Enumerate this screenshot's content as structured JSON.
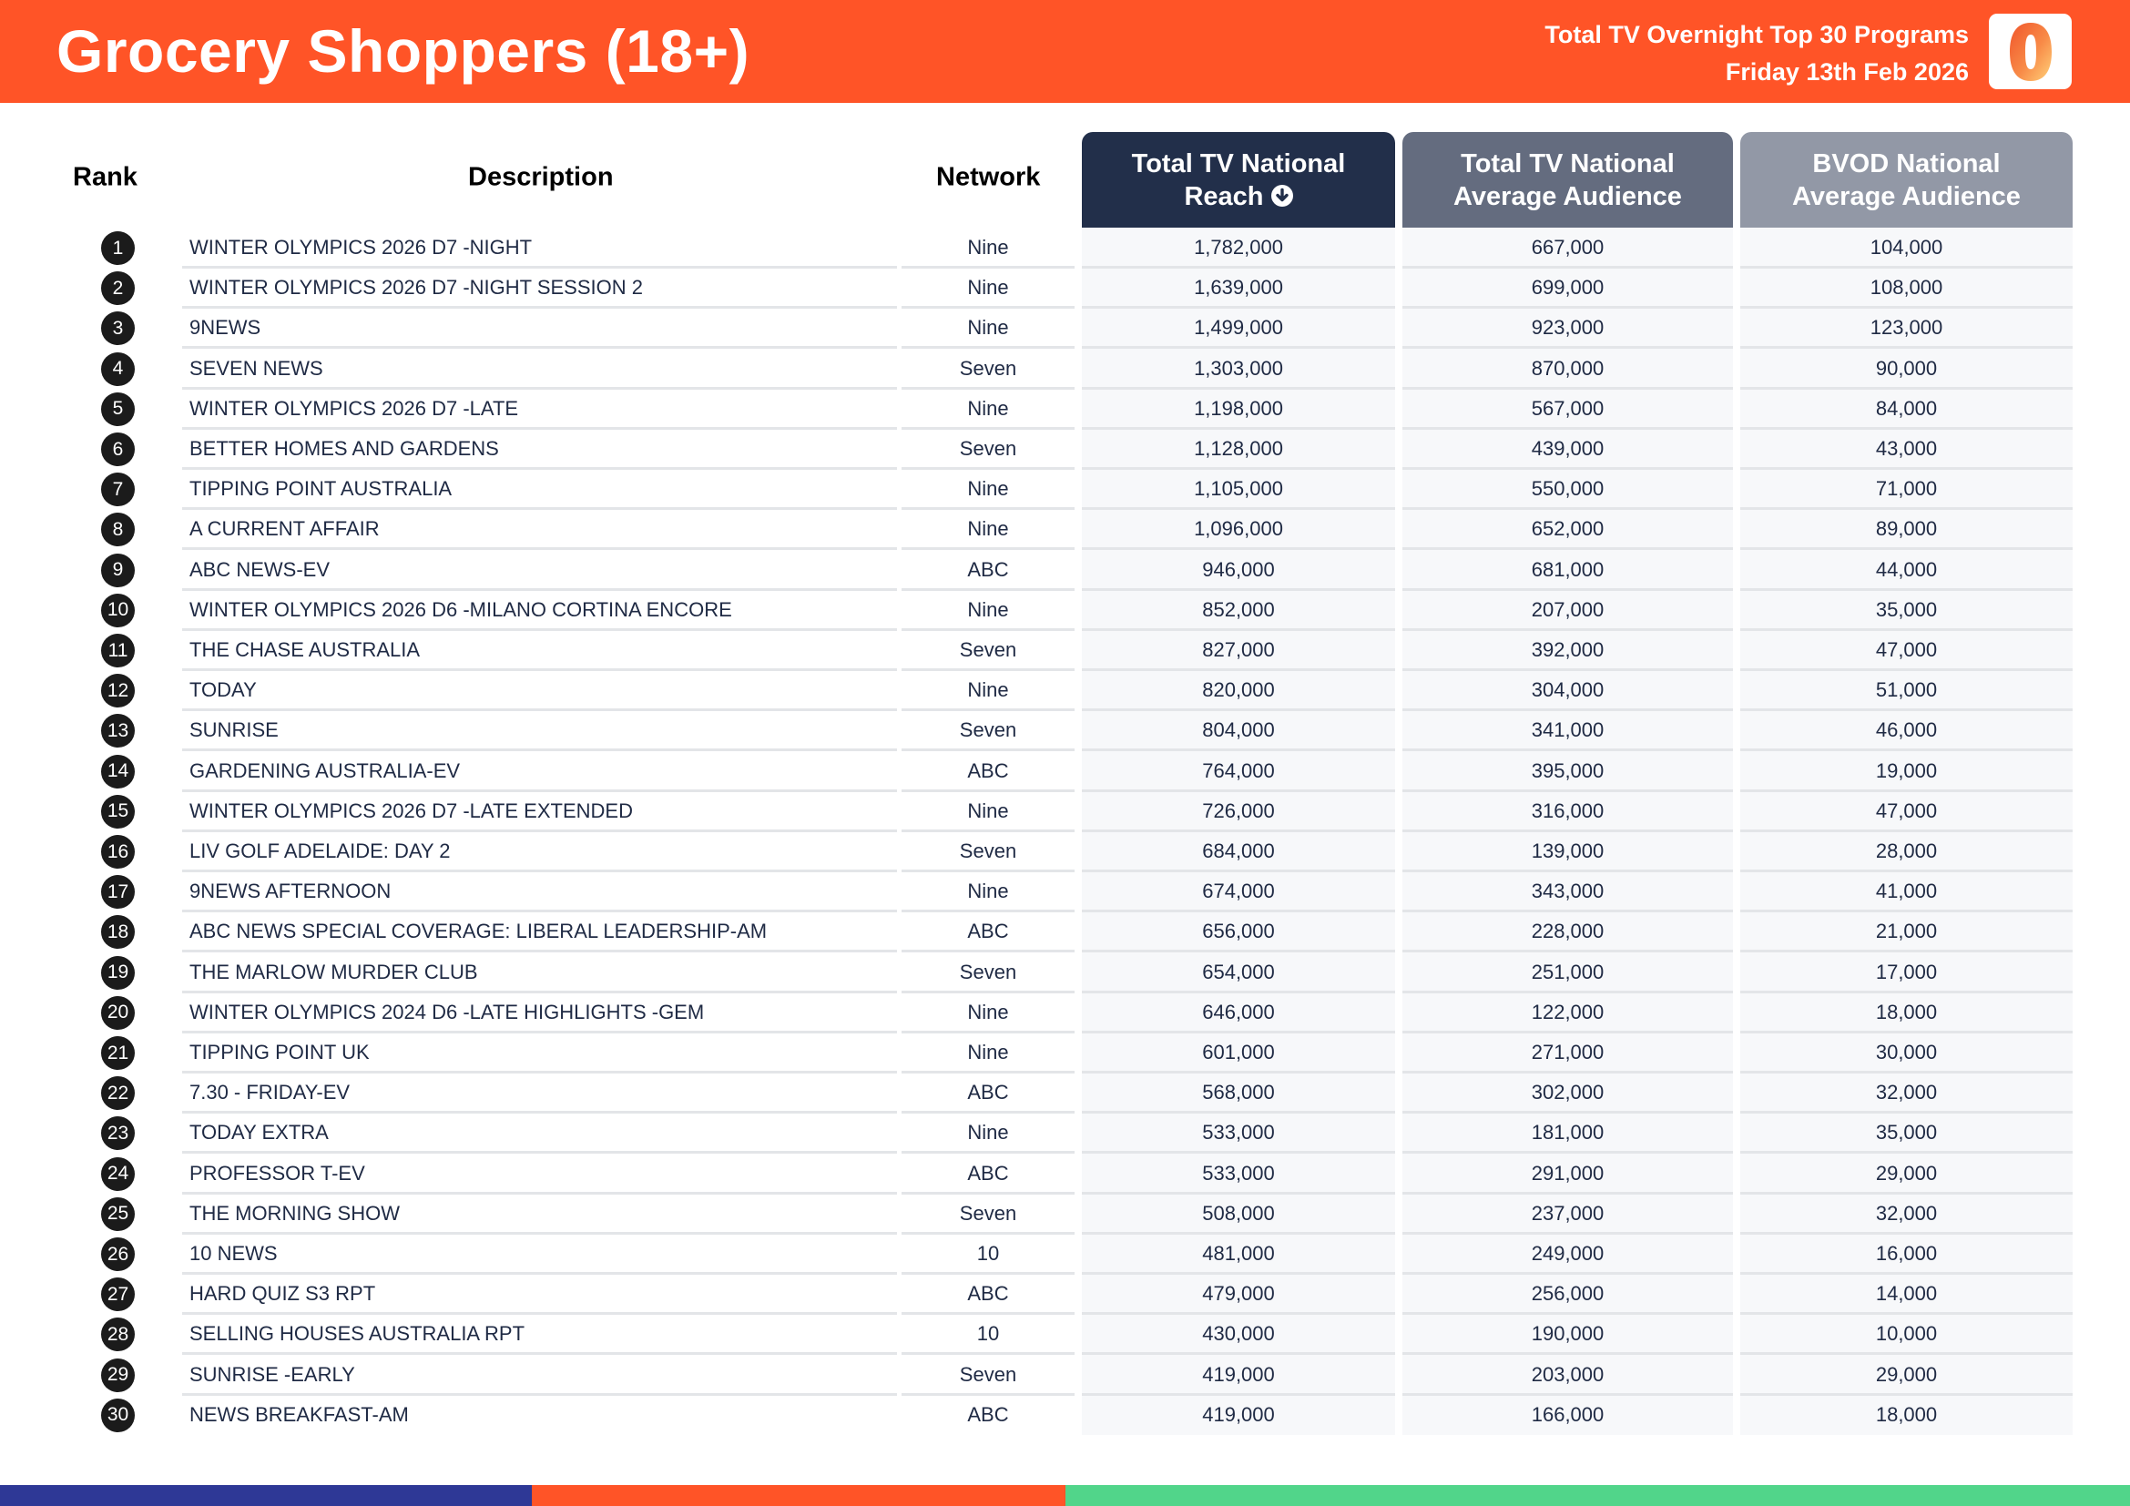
{
  "header": {
    "title": "Grocery Shoppers (18+)",
    "subtitle_line1": "Total TV Overnight Top 30 Programs",
    "subtitle_line2": "Friday 13th Feb 2026",
    "logo_icon": "oztam-zero-logo-icon",
    "brand_color": "#ff5427"
  },
  "columns": {
    "rank": "Rank",
    "description": "Description",
    "network": "Network",
    "reach_line1": "Total TV National",
    "reach_line2": "Reach",
    "reach_sort_icon": "sort-descending-icon",
    "avg_line1": "Total TV National",
    "avg_line2": "Average Audience",
    "bvod_line1": "BVOD National",
    "bvod_line2": "Average Audience",
    "reach_color": "#222f4a",
    "avg_color": "#646c7f",
    "bvod_color": "#9298a6"
  },
  "rows": [
    {
      "rank": "1",
      "description": "WINTER OLYMPICS 2026 D7 -NIGHT",
      "network": "Nine",
      "reach": "1,782,000",
      "avg": "667,000",
      "bvod": "104,000"
    },
    {
      "rank": "2",
      "description": "WINTER OLYMPICS 2026 D7 -NIGHT SESSION 2",
      "network": "Nine",
      "reach": "1,639,000",
      "avg": "699,000",
      "bvod": "108,000"
    },
    {
      "rank": "3",
      "description": "9NEWS",
      "network": "Nine",
      "reach": "1,499,000",
      "avg": "923,000",
      "bvod": "123,000"
    },
    {
      "rank": "4",
      "description": "SEVEN NEWS",
      "network": "Seven",
      "reach": "1,303,000",
      "avg": "870,000",
      "bvod": "90,000"
    },
    {
      "rank": "5",
      "description": "WINTER OLYMPICS 2026 D7 -LATE",
      "network": "Nine",
      "reach": "1,198,000",
      "avg": "567,000",
      "bvod": "84,000"
    },
    {
      "rank": "6",
      "description": "BETTER HOMES AND GARDENS",
      "network": "Seven",
      "reach": "1,128,000",
      "avg": "439,000",
      "bvod": "43,000"
    },
    {
      "rank": "7",
      "description": "TIPPING POINT AUSTRALIA",
      "network": "Nine",
      "reach": "1,105,000",
      "avg": "550,000",
      "bvod": "71,000"
    },
    {
      "rank": "8",
      "description": "A CURRENT AFFAIR",
      "network": "Nine",
      "reach": "1,096,000",
      "avg": "652,000",
      "bvod": "89,000"
    },
    {
      "rank": "9",
      "description": "ABC NEWS-EV",
      "network": "ABC",
      "reach": "946,000",
      "avg": "681,000",
      "bvod": "44,000"
    },
    {
      "rank": "10",
      "description": "WINTER OLYMPICS 2026 D6 -MILANO CORTINA ENCORE",
      "network": "Nine",
      "reach": "852,000",
      "avg": "207,000",
      "bvod": "35,000"
    },
    {
      "rank": "11",
      "description": "THE CHASE AUSTRALIA",
      "network": "Seven",
      "reach": "827,000",
      "avg": "392,000",
      "bvod": "47,000"
    },
    {
      "rank": "12",
      "description": "TODAY",
      "network": "Nine",
      "reach": "820,000",
      "avg": "304,000",
      "bvod": "51,000"
    },
    {
      "rank": "13",
      "description": "SUNRISE",
      "network": "Seven",
      "reach": "804,000",
      "avg": "341,000",
      "bvod": "46,000"
    },
    {
      "rank": "14",
      "description": "GARDENING AUSTRALIA-EV",
      "network": "ABC",
      "reach": "764,000",
      "avg": "395,000",
      "bvod": "19,000"
    },
    {
      "rank": "15",
      "description": "WINTER OLYMPICS 2026 D7 -LATE EXTENDED",
      "network": "Nine",
      "reach": "726,000",
      "avg": "316,000",
      "bvod": "47,000"
    },
    {
      "rank": "16",
      "description": "LIV GOLF ADELAIDE: DAY 2",
      "network": "Seven",
      "reach": "684,000",
      "avg": "139,000",
      "bvod": "28,000"
    },
    {
      "rank": "17",
      "description": "9NEWS AFTERNOON",
      "network": "Nine",
      "reach": "674,000",
      "avg": "343,000",
      "bvod": "41,000"
    },
    {
      "rank": "18",
      "description": "ABC NEWS SPECIAL COVERAGE: LIBERAL LEADERSHIP-AM",
      "network": "ABC",
      "reach": "656,000",
      "avg": "228,000",
      "bvod": "21,000"
    },
    {
      "rank": "19",
      "description": "THE MARLOW MURDER CLUB",
      "network": "Seven",
      "reach": "654,000",
      "avg": "251,000",
      "bvod": "17,000"
    },
    {
      "rank": "20",
      "description": "WINTER OLYMPICS 2024 D6 -LATE HIGHLIGHTS -GEM",
      "network": "Nine",
      "reach": "646,000",
      "avg": "122,000",
      "bvod": "18,000"
    },
    {
      "rank": "21",
      "description": "TIPPING POINT UK",
      "network": "Nine",
      "reach": "601,000",
      "avg": "271,000",
      "bvod": "30,000"
    },
    {
      "rank": "22",
      "description": "7.30 - FRIDAY-EV",
      "network": "ABC",
      "reach": "568,000",
      "avg": "302,000",
      "bvod": "32,000"
    },
    {
      "rank": "23",
      "description": "TODAY EXTRA",
      "network": "Nine",
      "reach": "533,000",
      "avg": "181,000",
      "bvod": "35,000"
    },
    {
      "rank": "24",
      "description": "PROFESSOR T-EV",
      "network": "ABC",
      "reach": "533,000",
      "avg": "291,000",
      "bvod": "29,000"
    },
    {
      "rank": "25",
      "description": "THE MORNING SHOW",
      "network": "Seven",
      "reach": "508,000",
      "avg": "237,000",
      "bvod": "32,000"
    },
    {
      "rank": "26",
      "description": "10 NEWS",
      "network": "10",
      "reach": "481,000",
      "avg": "249,000",
      "bvod": "16,000"
    },
    {
      "rank": "27",
      "description": "HARD QUIZ S3 RPT",
      "network": "ABC",
      "reach": "479,000",
      "avg": "256,000",
      "bvod": "14,000"
    },
    {
      "rank": "28",
      "description": "SELLING HOUSES AUSTRALIA RPT",
      "network": "10",
      "reach": "430,000",
      "avg": "190,000",
      "bvod": "10,000"
    },
    {
      "rank": "29",
      "description": "SUNRISE -EARLY",
      "network": "Seven",
      "reach": "419,000",
      "avg": "203,000",
      "bvod": "29,000"
    },
    {
      "rank": "30",
      "description": "NEWS BREAKFAST-AM",
      "network": "ABC",
      "reach": "419,000",
      "avg": "166,000",
      "bvod": "18,000"
    }
  ],
  "footer": {
    "band_colors": [
      "#2e3896",
      "#ff5427",
      "#51d58a"
    ]
  }
}
